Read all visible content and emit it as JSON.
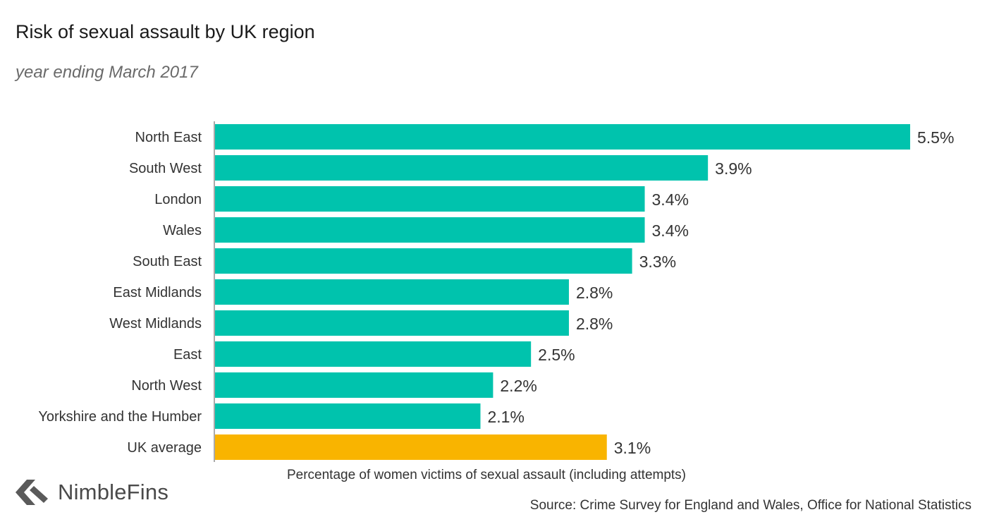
{
  "colors": {
    "region_bar": "#00c3ad",
    "average_bar": "#f9b400",
    "axis_line": "#555555",
    "text": "#333333"
  },
  "chart_data": {
    "type": "bar",
    "orientation": "horizontal",
    "title": "Risk of sexual assault by UK region",
    "subtitle": "year ending March 2017",
    "xlabel": "Percentage of women victims of sexual assault (including attempts)",
    "ylabel": "",
    "xlim": [
      0,
      5.5
    ],
    "grid": false,
    "categories": [
      "North East",
      "South West",
      "London",
      "Wales",
      "South East",
      "East Midlands",
      "West Midlands",
      "East",
      "North West",
      "Yorkshire and the Humber",
      "UK average"
    ],
    "values": [
      5.5,
      3.9,
      3.4,
      3.4,
      3.3,
      2.8,
      2.8,
      2.5,
      2.2,
      2.1,
      3.1
    ],
    "value_labels": [
      "5.5%",
      "3.9%",
      "3.4%",
      "3.4%",
      "3.3%",
      "2.8%",
      "2.8%",
      "2.5%",
      "2.2%",
      "2.1%",
      "3.1%"
    ],
    "highlight_category": "UK average"
  },
  "logo": {
    "icon": "nimblefins-arrow-icon",
    "text": "NimbleFins"
  },
  "source": "Source: Crime Survey for England and Wales, Office for National Statistics"
}
